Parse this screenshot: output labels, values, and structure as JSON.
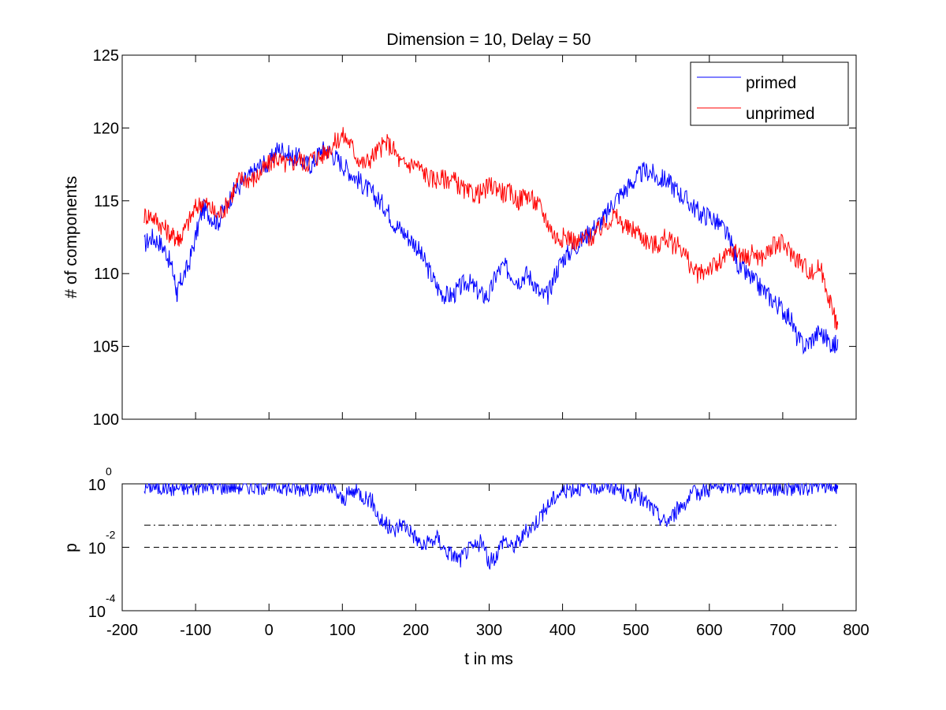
{
  "chart_data": [
    {
      "type": "line",
      "title": "Dimension  = 10, Delay = 50",
      "xlabel": "",
      "ylabel": "# of components",
      "xlim": [
        -200,
        800
      ],
      "ylim": [
        100,
        125
      ],
      "yticks": [
        "100",
        "105",
        "110",
        "115",
        "120",
        "125"
      ],
      "grid": false,
      "legend_position": "top-right",
      "series": [
        {
          "name": "primed",
          "color": "#0000ff",
          "x": [
            -170,
            -160,
            -150,
            -140,
            -130,
            -125,
            -120,
            -110,
            -100,
            -90,
            -80,
            -70,
            -60,
            -50,
            -40,
            -30,
            -20,
            -10,
            0,
            10,
            20,
            30,
            40,
            50,
            60,
            70,
            80,
            90,
            100,
            110,
            120,
            130,
            140,
            150,
            160,
            170,
            180,
            190,
            200,
            210,
            220,
            230,
            240,
            250,
            260,
            270,
            280,
            290,
            300,
            310,
            320,
            330,
            340,
            350,
            360,
            370,
            380,
            390,
            400,
            410,
            420,
            430,
            440,
            450,
            460,
            470,
            480,
            490,
            500,
            510,
            520,
            530,
            540,
            550,
            560,
            570,
            580,
            590,
            600,
            610,
            620,
            630,
            640,
            650,
            660,
            670,
            680,
            690,
            700,
            710,
            720,
            730,
            740,
            750,
            760,
            770,
            775
          ],
          "values": [
            112,
            112.5,
            112.2,
            111.5,
            110,
            108.5,
            109.5,
            110.5,
            112.5,
            114.5,
            114,
            113.5,
            114.5,
            115.5,
            116,
            116.5,
            117,
            117.5,
            117.5,
            118.5,
            118.5,
            118,
            118,
            117.5,
            117.5,
            118.5,
            118.5,
            118,
            117.5,
            117,
            116.5,
            116,
            115.5,
            115,
            114.5,
            113.5,
            113,
            112.5,
            112,
            111,
            110,
            109,
            108.5,
            108.5,
            109,
            109.5,
            109,
            108.5,
            108.5,
            110,
            110.5,
            110,
            109.5,
            110,
            109.5,
            108.5,
            108.5,
            110,
            111,
            111.5,
            112,
            112.5,
            113,
            113.5,
            114,
            115,
            115.5,
            116,
            116.5,
            117,
            117,
            116.5,
            116.5,
            116,
            115.5,
            115,
            114.5,
            114,
            114,
            113.5,
            113,
            112,
            110.5,
            110,
            109.5,
            109,
            108.5,
            108,
            107.5,
            107,
            105.5,
            105,
            105.5,
            106,
            105.5,
            105,
            105.5
          ]
        },
        {
          "name": "unprimed",
          "color": "#ff0000",
          "x": [
            -170,
            -160,
            -150,
            -140,
            -130,
            -125,
            -120,
            -110,
            -100,
            -90,
            -80,
            -70,
            -60,
            -50,
            -40,
            -30,
            -20,
            -10,
            0,
            10,
            20,
            30,
            40,
            50,
            60,
            70,
            80,
            90,
            100,
            110,
            120,
            130,
            140,
            150,
            160,
            170,
            180,
            190,
            200,
            210,
            220,
            230,
            240,
            250,
            260,
            270,
            280,
            290,
            300,
            310,
            320,
            330,
            340,
            350,
            360,
            370,
            380,
            390,
            400,
            410,
            420,
            430,
            440,
            450,
            460,
            470,
            480,
            490,
            500,
            510,
            520,
            530,
            540,
            550,
            560,
            570,
            580,
            590,
            600,
            610,
            620,
            630,
            640,
            650,
            660,
            670,
            680,
            690,
            700,
            710,
            720,
            730,
            740,
            750,
            760,
            770,
            775
          ],
          "values": [
            114,
            114,
            113.5,
            113,
            112.5,
            112.5,
            112.5,
            113.5,
            114.5,
            115,
            114.5,
            114,
            114.5,
            115.5,
            116.5,
            116.5,
            116.5,
            117,
            117.5,
            118,
            117.5,
            117.5,
            118,
            117.5,
            118,
            118,
            118.5,
            119,
            119.5,
            119,
            118,
            117.5,
            118,
            118.5,
            119,
            118.5,
            117.5,
            117.5,
            117.5,
            117,
            116.5,
            116.5,
            116.5,
            116.5,
            116,
            115.5,
            115.5,
            115.5,
            116,
            116,
            115.5,
            115.5,
            115,
            115.5,
            115,
            114.5,
            113.5,
            112.5,
            112.5,
            112.5,
            112,
            112.5,
            112.5,
            113,
            113.5,
            114,
            113.5,
            113,
            113,
            112.5,
            112,
            112,
            112.5,
            112,
            112,
            111,
            110,
            110,
            110.5,
            110.5,
            111,
            111.5,
            111.5,
            111,
            111.5,
            111,
            111.5,
            112,
            112,
            111.5,
            111,
            110.5,
            110,
            110.5,
            109,
            107,
            106.5
          ]
        }
      ]
    },
    {
      "type": "line",
      "title": "",
      "xlabel": "t in ms",
      "ylabel": "p",
      "xlim": [
        -200,
        800
      ],
      "ylim": [
        0.0001,
        1
      ],
      "y_scale": "log",
      "xticks": [
        "-200",
        "-100",
        "0",
        "100",
        "200",
        "300",
        "400",
        "500",
        "600",
        "700",
        "800"
      ],
      "yticks": [
        {
          "base": "10",
          "exp": "-4"
        },
        {
          "base": "10",
          "exp": "-2"
        },
        {
          "base": "10",
          "exp": "0"
        }
      ],
      "grid": false,
      "series": [
        {
          "color": "#0000ff",
          "x": [
            -170,
            -160,
            -150,
            -140,
            -130,
            -120,
            -110,
            -100,
            -90,
            -80,
            -70,
            -60,
            -50,
            -40,
            -30,
            -20,
            -10,
            0,
            10,
            20,
            30,
            40,
            50,
            60,
            70,
            80,
            90,
            100,
            110,
            120,
            130,
            140,
            150,
            160,
            170,
            180,
            190,
            200,
            210,
            220,
            230,
            240,
            250,
            260,
            270,
            280,
            290,
            300,
            310,
            320,
            330,
            340,
            350,
            360,
            370,
            380,
            390,
            400,
            410,
            420,
            430,
            440,
            450,
            460,
            470,
            480,
            490,
            500,
            510,
            520,
            530,
            540,
            550,
            560,
            570,
            580,
            590,
            600,
            610,
            620,
            630,
            640,
            650,
            660,
            670,
            680,
            690,
            700,
            710,
            720,
            730,
            740,
            750,
            760,
            770,
            775
          ],
          "values": [
            0.8,
            0.9,
            0.75,
            0.85,
            0.7,
            0.8,
            0.75,
            0.8,
            0.85,
            0.9,
            0.8,
            0.85,
            0.9,
            0.85,
            0.9,
            0.8,
            0.85,
            0.9,
            0.85,
            0.8,
            0.75,
            0.7,
            0.8,
            0.75,
            0.8,
            0.7,
            0.6,
            0.3,
            0.5,
            0.6,
            0.4,
            0.3,
            0.08,
            0.05,
            0.03,
            0.06,
            0.04,
            0.02,
            0.01,
            0.015,
            0.02,
            0.008,
            0.006,
            0.004,
            0.008,
            0.01,
            0.015,
            0.003,
            0.006,
            0.02,
            0.01,
            0.015,
            0.03,
            0.05,
            0.1,
            0.2,
            0.4,
            0.6,
            0.7,
            0.8,
            0.75,
            0.85,
            0.8,
            0.9,
            0.8,
            0.6,
            0.4,
            0.5,
            0.3,
            0.2,
            0.1,
            0.06,
            0.1,
            0.2,
            0.3,
            0.5,
            0.6,
            0.7,
            0.75,
            0.85,
            0.9,
            0.8,
            0.85,
            0.9,
            0.8,
            0.85,
            0.75,
            0.8,
            0.7,
            0.8,
            0.75,
            0.85,
            0.8,
            0.9,
            0.85,
            0.9
          ]
        }
      ],
      "reference_lines": [
        {
          "style": "dash-dot",
          "value": 0.05
        },
        {
          "style": "dashed",
          "value": 0.01
        }
      ]
    }
  ]
}
